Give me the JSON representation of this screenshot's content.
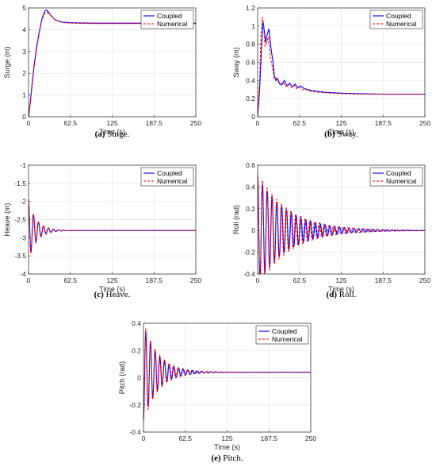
{
  "chart_data": [
    {
      "id": "surge",
      "type": "line",
      "caption_label": "(a)",
      "caption_text": " Surge.",
      "xlabel": "Time (s)",
      "ylabel": "Surge (m)",
      "xlim": [
        0,
        250
      ],
      "ylim": [
        0,
        5
      ],
      "xticks": [
        "0",
        "62.5",
        "125",
        "187.5",
        "250"
      ],
      "xtick_values": [
        0,
        62.5,
        125,
        187.5,
        250
      ],
      "yticks": [
        "0",
        "1",
        "2",
        "3",
        "4",
        "5"
      ],
      "ytick_values": [
        0,
        1,
        2,
        3,
        4,
        5
      ],
      "grid": true,
      "legend_position": "top-right",
      "series": [
        {
          "name": "Coupled",
          "style": "solid",
          "color": "#0000ff",
          "x": [
            0,
            2,
            5,
            8,
            12,
            16,
            20,
            24,
            27,
            30,
            35,
            40,
            50,
            62.5,
            80,
            100,
            125,
            150,
            187.5,
            220,
            250
          ],
          "y": [
            0,
            0.5,
            1.4,
            2.3,
            3.2,
            3.9,
            4.5,
            4.85,
            4.9,
            4.8,
            4.6,
            4.45,
            4.35,
            4.32,
            4.31,
            4.3,
            4.3,
            4.3,
            4.3,
            4.3,
            4.3
          ]
        },
        {
          "name": "Numerical",
          "style": "dashed",
          "color": "#ff0000",
          "x": [
            0,
            2,
            5,
            8,
            12,
            16,
            20,
            24,
            28,
            32,
            36,
            42,
            50,
            62.5,
            80,
            100,
            125,
            150,
            187.5,
            220,
            250
          ],
          "y": [
            0,
            0.45,
            1.3,
            2.2,
            3.1,
            3.85,
            4.45,
            4.75,
            4.8,
            4.7,
            4.55,
            4.42,
            4.33,
            4.3,
            4.29,
            4.28,
            4.28,
            4.28,
            4.28,
            4.28,
            4.28
          ]
        }
      ]
    },
    {
      "id": "sway",
      "type": "line",
      "caption_label": "(b)",
      "caption_text": " Sway.",
      "xlabel": "Time (s)",
      "ylabel": "Sway (m)",
      "xlim": [
        0,
        250
      ],
      "ylim": [
        0,
        1.2
      ],
      "xticks": [
        "0",
        "62.5",
        "125",
        "187.5",
        "250"
      ],
      "xtick_values": [
        0,
        62.5,
        125,
        187.5,
        250
      ],
      "yticks": [
        "0",
        "0.2",
        "0.4",
        "0.6",
        "0.8",
        "1",
        "1.2"
      ],
      "ytick_values": [
        0,
        0.2,
        0.4,
        0.6,
        0.8,
        1.0,
        1.2
      ],
      "grid": true,
      "legend_position": "top-right",
      "series": [
        {
          "name": "Coupled",
          "style": "solid",
          "color": "#0000ff",
          "x": [
            0,
            3,
            6,
            8,
            10,
            12,
            14,
            17,
            20,
            23,
            25,
            27,
            30,
            33,
            36,
            40,
            44,
            48,
            52,
            56,
            60,
            64,
            70,
            80,
            90,
            100,
            125,
            150,
            187.5,
            220,
            250
          ],
          "y": [
            0,
            0.3,
            0.8,
            1.05,
            0.95,
            0.82,
            0.9,
            0.97,
            0.75,
            0.6,
            0.45,
            0.4,
            0.42,
            0.36,
            0.35,
            0.4,
            0.34,
            0.37,
            0.33,
            0.36,
            0.32,
            0.34,
            0.31,
            0.29,
            0.28,
            0.27,
            0.26,
            0.255,
            0.25,
            0.25,
            0.25
          ]
        },
        {
          "name": "Numerical",
          "style": "dashed",
          "color": "#ff0000",
          "x": [
            0,
            3,
            5,
            7,
            9,
            11,
            13,
            16,
            19,
            22,
            25,
            28,
            31,
            34,
            38,
            42,
            46,
            50,
            54,
            58,
            62,
            66,
            72,
            80,
            90,
            100,
            125,
            150,
            187.5,
            220,
            250
          ],
          "y": [
            0,
            0.4,
            0.9,
            1.1,
            1.0,
            0.78,
            0.8,
            0.88,
            0.65,
            0.55,
            0.42,
            0.43,
            0.38,
            0.37,
            0.38,
            0.33,
            0.36,
            0.32,
            0.35,
            0.31,
            0.33,
            0.3,
            0.3,
            0.28,
            0.27,
            0.265,
            0.255,
            0.25,
            0.248,
            0.248,
            0.248
          ]
        }
      ]
    },
    {
      "id": "heave",
      "type": "line",
      "caption_label": "(c)",
      "caption_text": " Heave.",
      "xlabel": "Time (s)",
      "ylabel": "Heave (m)",
      "xlim": [
        0,
        250
      ],
      "ylim": [
        -4,
        -1
      ],
      "xticks": [
        "0",
        "62.5",
        "125",
        "187.5",
        "250"
      ],
      "xtick_values": [
        0,
        62.5,
        125,
        187.5,
        250
      ],
      "yticks": [
        "-4",
        "-3.5",
        "-3",
        "-2.5",
        "-2",
        "-1.5",
        "-1"
      ],
      "ytick_values": [
        -4,
        -3.5,
        -3,
        -2.5,
        -2,
        -1.5,
        -1
      ],
      "grid": true,
      "legend_position": "top-right",
      "oscillation": {
        "start": -1.5,
        "settle": -2.8,
        "amp": 0.8,
        "period": 7.5,
        "decay": 12
      },
      "series": [
        {
          "name": "Coupled",
          "style": "solid",
          "color": "#0000ff"
        },
        {
          "name": "Numerical",
          "style": "dashed",
          "color": "#ff0000"
        }
      ]
    },
    {
      "id": "roll",
      "type": "line",
      "caption_label": "(d)",
      "caption_text": " Roll.",
      "xlabel": "Time (s)",
      "ylabel": "Roll (rad)",
      "xlim": [
        0,
        250
      ],
      "ylim": [
        -0.4,
        0.6
      ],
      "xticks": [
        "0",
        "62.5",
        "125",
        "187.5",
        "250"
      ],
      "xtick_values": [
        0,
        62.5,
        125,
        187.5,
        250
      ],
      "yticks": [
        "-0.4",
        "-0.2",
        "0",
        "0.2",
        "0.4",
        "0.6"
      ],
      "ytick_values": [
        -0.4,
        -0.2,
        0,
        0.2,
        0.4,
        0.6
      ],
      "grid": true,
      "legend_position": "top-right",
      "oscillation": {
        "start": 0.5,
        "settle": 0.0,
        "amp": 0.5,
        "period": 7.2,
        "decay": 45
      },
      "series": [
        {
          "name": "Coupled",
          "style": "solid",
          "color": "#0000ff"
        },
        {
          "name": "Numerical",
          "style": "dashed",
          "color": "#ff0000"
        }
      ]
    },
    {
      "id": "pitch",
      "type": "line",
      "caption_label": "(e)",
      "caption_text": " Pitch.",
      "xlabel": "Time (s)",
      "ylabel": "Pitch (rad)",
      "xlim": [
        0,
        250
      ],
      "ylim": [
        -0.4,
        0.4
      ],
      "xticks": [
        "0",
        "62.5",
        "125",
        "187.5",
        "250"
      ],
      "xtick_values": [
        0,
        62.5,
        125,
        187.5,
        250
      ],
      "yticks": [
        "-0.4",
        "-0.2",
        "0",
        "0.2",
        "0.4"
      ],
      "ytick_values": [
        -0.4,
        -0.2,
        0,
        0.2,
        0.4
      ],
      "grid": true,
      "legend_position": "top-right",
      "oscillation": {
        "start": -0.35,
        "settle": 0.04,
        "amp": -0.35,
        "period": 7.0,
        "decay": 22
      },
      "series": [
        {
          "name": "Coupled",
          "style": "solid",
          "color": "#0000ff"
        },
        {
          "name": "Numerical",
          "style": "dashed",
          "color": "#ff0000"
        }
      ]
    }
  ]
}
